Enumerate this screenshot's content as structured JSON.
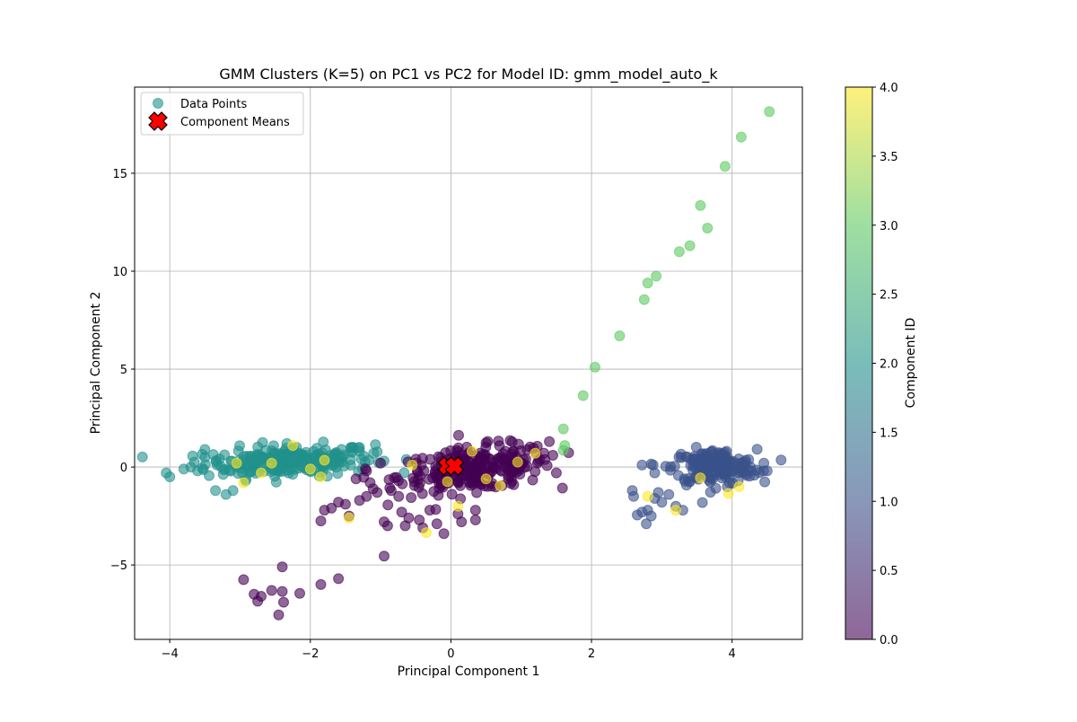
{
  "chart_data": {
    "type": "scatter",
    "title": "GMM Clusters (K=5) on PC1 vs PC2 for Model ID: gmm_model_auto_k",
    "xlabel": "Principal Component 1",
    "ylabel": "Principal Component 2",
    "xlim": [
      -4.5,
      5.0
    ],
    "ylim": [
      -8.8,
      19.4
    ],
    "xticks": [
      -4,
      -2,
      0,
      2,
      4
    ],
    "yticks": [
      -5,
      0,
      5,
      10,
      15
    ],
    "grid": true,
    "legend": {
      "placement": "top-left",
      "entries": [
        "Data Points",
        "Component Means"
      ]
    },
    "colorbar": {
      "label": "Component ID",
      "range": [
        0.0,
        4.0
      ],
      "ticks": [
        "0.0",
        "0.5",
        "1.0",
        "1.5",
        "2.0",
        "2.5",
        "3.0",
        "3.5",
        "4.0"
      ],
      "colormap": [
        "#440154",
        "#3b528b",
        "#21918c",
        "#5ec962",
        "#fde725"
      ]
    },
    "component_means": [
      {
        "x": -0.05,
        "y": 0.05
      },
      {
        "x": 0.05,
        "y": 0.05
      }
    ],
    "clusters": [
      {
        "component": 2,
        "center": [
          -2.3,
          0.3
        ],
        "spread": [
          0.6,
          0.4
        ],
        "count": 240
      },
      {
        "component": 0,
        "center": [
          0.35,
          -0.1
        ],
        "spread": [
          0.55,
          0.55
        ],
        "count": 260
      },
      {
        "component": 1,
        "center": [
          3.75,
          0.0
        ],
        "spread": [
          0.3,
          0.45
        ],
        "count": 190
      }
    ],
    "points": [
      {
        "x": -4.05,
        "y": -0.3,
        "c": 2
      },
      {
        "x": -4.0,
        "y": -0.5,
        "c": 2
      },
      {
        "x": -3.8,
        "y": -0.1,
        "c": 2
      },
      {
        "x": -3.7,
        "y": 0.0,
        "c": 2
      },
      {
        "x": -3.65,
        "y": 0.25,
        "c": 2
      },
      {
        "x": -3.5,
        "y": 0.9,
        "c": 2
      },
      {
        "x": -3.5,
        "y": 0.5,
        "c": 2
      },
      {
        "x": -3.35,
        "y": -1.2,
        "c": 2
      },
      {
        "x": -3.2,
        "y": -1.4,
        "c": 2
      },
      {
        "x": -3.1,
        "y": -1.2,
        "c": 2
      },
      {
        "x": -1.3,
        "y": 1.0,
        "c": 2
      },
      {
        "x": -1.1,
        "y": 0.7,
        "c": 2
      },
      {
        "x": -1.55,
        "y": 0.5,
        "c": 2
      },
      {
        "x": -1.7,
        "y": 0.3,
        "c": 2
      },
      {
        "x": -3.05,
        "y": 0.2,
        "c": 4
      },
      {
        "x": -2.95,
        "y": -0.8,
        "c": 4
      },
      {
        "x": -2.55,
        "y": 0.2,
        "c": 4
      },
      {
        "x": -2.25,
        "y": 1.1,
        "c": 4
      },
      {
        "x": -2.0,
        "y": -0.1,
        "c": 4
      },
      {
        "x": -1.85,
        "y": -0.5,
        "c": 4
      },
      {
        "x": -1.8,
        "y": 0.35,
        "c": 4
      },
      {
        "x": -2.7,
        "y": -0.3,
        "c": 4
      },
      {
        "x": -2.95,
        "y": -5.75,
        "c": 0
      },
      {
        "x": -2.8,
        "y": -6.5,
        "c": 0
      },
      {
        "x": -2.75,
        "y": -6.85,
        "c": 0
      },
      {
        "x": -2.7,
        "y": -6.6,
        "c": 0
      },
      {
        "x": -2.55,
        "y": -6.3,
        "c": 0
      },
      {
        "x": -2.45,
        "y": -7.55,
        "c": 0
      },
      {
        "x": -2.4,
        "y": -6.35,
        "c": 0
      },
      {
        "x": -2.38,
        "y": -6.9,
        "c": 0
      },
      {
        "x": -2.4,
        "y": -5.1,
        "c": 0
      },
      {
        "x": -2.15,
        "y": -6.45,
        "c": 0
      },
      {
        "x": -1.85,
        "y": -6.0,
        "c": 0
      },
      {
        "x": -1.6,
        "y": -5.7,
        "c": 0
      },
      {
        "x": -0.95,
        "y": -4.55,
        "c": 0
      },
      {
        "x": -1.85,
        "y": -2.75,
        "c": 0
      },
      {
        "x": -1.8,
        "y": -2.2,
        "c": 0
      },
      {
        "x": -1.7,
        "y": -2.1,
        "c": 0
      },
      {
        "x": -1.6,
        "y": -1.8,
        "c": 0
      },
      {
        "x": -1.5,
        "y": -1.9,
        "c": 0
      },
      {
        "x": -1.45,
        "y": -2.5,
        "c": 0
      },
      {
        "x": -1.3,
        "y": -1.7,
        "c": 0
      },
      {
        "x": -1.2,
        "y": -1.5,
        "c": 0
      },
      {
        "x": -1.15,
        "y": -0.8,
        "c": 0
      },
      {
        "x": -1.05,
        "y": -1.3,
        "c": 0
      },
      {
        "x": -0.95,
        "y": -2.8,
        "c": 0
      },
      {
        "x": -0.9,
        "y": -3.0,
        "c": 0
      },
      {
        "x": -0.85,
        "y": -1.2,
        "c": 0
      },
      {
        "x": -0.7,
        "y": -2.3,
        "c": 0
      },
      {
        "x": -0.65,
        "y": -3.0,
        "c": 0
      },
      {
        "x": -0.6,
        "y": -2.6,
        "c": 0
      },
      {
        "x": -0.45,
        "y": -2.7,
        "c": 0
      },
      {
        "x": -0.4,
        "y": -3.1,
        "c": 0
      },
      {
        "x": -0.3,
        "y": -2.2,
        "c": 0
      },
      {
        "x": -0.2,
        "y": -2.9,
        "c": 0
      },
      {
        "x": -0.1,
        "y": -3.4,
        "c": 0
      },
      {
        "x": 0.1,
        "y": -2.4,
        "c": 0
      },
      {
        "x": 0.15,
        "y": -2.8,
        "c": 0
      },
      {
        "x": 0.35,
        "y": -2.2,
        "c": 0
      },
      {
        "x": 0.35,
        "y": -2.7,
        "c": 0
      },
      {
        "x": -1.35,
        "y": -0.6,
        "c": 0
      },
      {
        "x": -1.2,
        "y": -0.2,
        "c": 0
      },
      {
        "x": -1.0,
        "y": 0.2,
        "c": 0
      },
      {
        "x": 1.4,
        "y": 1.3,
        "c": 0
      },
      {
        "x": 1.45,
        "y": 0.6,
        "c": 0
      },
      {
        "x": 1.5,
        "y": -0.3,
        "c": 0
      },
      {
        "x": -1.45,
        "y": -2.6,
        "c": 4
      },
      {
        "x": -0.35,
        "y": -3.35,
        "c": 4
      },
      {
        "x": 0.1,
        "y": -2.0,
        "c": 4
      },
      {
        "x": -0.55,
        "y": 0.1,
        "c": 4
      },
      {
        "x": 0.5,
        "y": -0.6,
        "c": 4
      },
      {
        "x": 0.95,
        "y": 0.25,
        "c": 4
      },
      {
        "x": 1.2,
        "y": 0.7,
        "c": 4
      },
      {
        "x": -0.05,
        "y": -0.75,
        "c": 4
      },
      {
        "x": 0.7,
        "y": -0.95,
        "c": 4
      },
      {
        "x": 0.3,
        "y": 0.8,
        "c": 4
      },
      {
        "x": 1.6,
        "y": 0.85,
        "c": 3
      },
      {
        "x": 1.62,
        "y": 1.1,
        "c": 3
      },
      {
        "x": 1.6,
        "y": 1.95,
        "c": 3
      },
      {
        "x": 1.88,
        "y": 3.65,
        "c": 3
      },
      {
        "x": 2.05,
        "y": 5.1,
        "c": 3
      },
      {
        "x": 2.4,
        "y": 6.7,
        "c": 3
      },
      {
        "x": 2.75,
        "y": 8.55,
        "c": 3
      },
      {
        "x": 2.8,
        "y": 9.4,
        "c": 3
      },
      {
        "x": 2.92,
        "y": 9.75,
        "c": 3
      },
      {
        "x": 3.25,
        "y": 11.0,
        "c": 3
      },
      {
        "x": 3.4,
        "y": 11.3,
        "c": 3
      },
      {
        "x": 3.55,
        "y": 13.35,
        "c": 3
      },
      {
        "x": 3.65,
        "y": 12.2,
        "c": 3
      },
      {
        "x": 3.9,
        "y": 15.35,
        "c": 3
      },
      {
        "x": 4.13,
        "y": 16.85,
        "c": 3
      },
      {
        "x": 4.53,
        "y": 18.15,
        "c": 3
      },
      {
        "x": 2.58,
        "y": -1.2,
        "c": 1
      },
      {
        "x": 2.6,
        "y": -1.5,
        "c": 1
      },
      {
        "x": 2.65,
        "y": -2.45,
        "c": 1
      },
      {
        "x": 2.72,
        "y": -2.3,
        "c": 1
      },
      {
        "x": 2.78,
        "y": -2.9,
        "c": 1
      },
      {
        "x": 2.8,
        "y": -2.2,
        "c": 1
      },
      {
        "x": 2.85,
        "y": -2.5,
        "c": 1
      },
      {
        "x": 2.9,
        "y": -1.6,
        "c": 1
      },
      {
        "x": 2.95,
        "y": -1.3,
        "c": 1
      },
      {
        "x": 3.0,
        "y": -1.8,
        "c": 1
      },
      {
        "x": 3.1,
        "y": -1.4,
        "c": 1
      },
      {
        "x": 3.2,
        "y": -2.0,
        "c": 1
      },
      {
        "x": 3.3,
        "y": -2.2,
        "c": 1
      },
      {
        "x": 2.72,
        "y": 0.1,
        "c": 1
      },
      {
        "x": 2.85,
        "y": 0.15,
        "c": 1
      },
      {
        "x": 2.9,
        "y": -0.3,
        "c": 1
      },
      {
        "x": 4.35,
        "y": -0.15,
        "c": 1
      },
      {
        "x": 4.45,
        "y": -0.2,
        "c": 1
      },
      {
        "x": 4.5,
        "y": -0.2,
        "c": 1
      },
      {
        "x": 2.8,
        "y": -1.5,
        "c": 4
      },
      {
        "x": 3.2,
        "y": -2.2,
        "c": 4
      },
      {
        "x": 3.55,
        "y": -0.55,
        "c": 4
      },
      {
        "x": 3.95,
        "y": -1.35,
        "c": 4
      },
      {
        "x": 4.1,
        "y": -1.0,
        "c": 4
      }
    ]
  }
}
